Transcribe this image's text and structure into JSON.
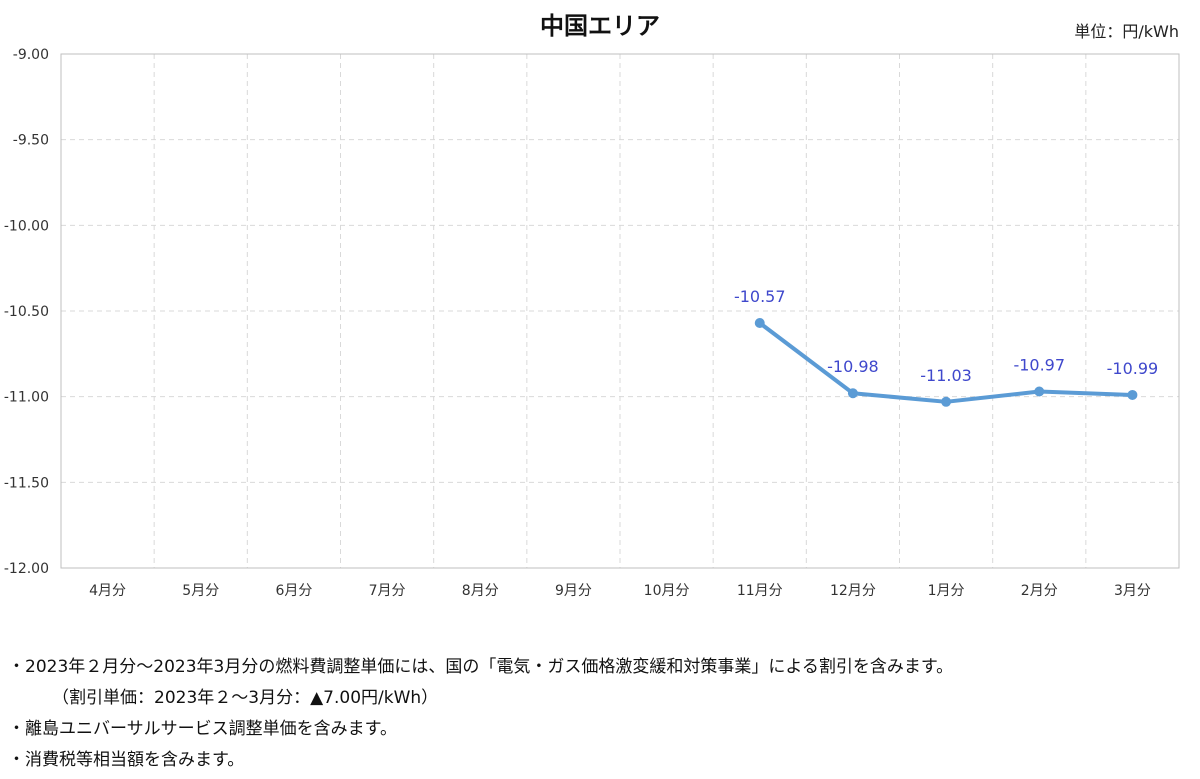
{
  "chart_data": {
    "type": "line",
    "title": "中国エリア",
    "unit": "単位：円/kWh",
    "categories": [
      "4月分",
      "5月分",
      "6月分",
      "7月分",
      "8月分",
      "9月分",
      "10月分",
      "11月分",
      "12月分",
      "1月分",
      "2月分",
      "3月分"
    ],
    "series": [
      {
        "values": [
          null,
          null,
          null,
          null,
          null,
          null,
          null,
          -10.57,
          -10.98,
          -11.03,
          -10.97,
          -10.99
        ],
        "labels": [
          "",
          "",
          "",
          "",
          "",
          "",
          "",
          "-10.57",
          "-10.98",
          "-11.03",
          "-10.97",
          "-10.99"
        ]
      }
    ],
    "ylim": [
      -12.0,
      -9.0
    ],
    "yticks": [
      "-9.00",
      "-9.50",
      "-10.00",
      "-10.50",
      "-11.00",
      "-11.50",
      "-12.00"
    ],
    "ytick_values": [
      -9.0,
      -9.5,
      -10.0,
      -10.5,
      -11.0,
      -11.5,
      -12.0
    ],
    "grid": true,
    "line_color": "#5b9bd5",
    "label_color": "#3f48cc"
  },
  "notes": [
    "・2023年２月分～2023年3月分の燃料費調整単価には、国の「電気・ガス価格激変緩和対策事業」による割引を含みます。",
    "（割引単価：2023年２～3月分：▲7.00円/kWh）",
    "・離島ユニバーサルサービス調整単価を含みます。",
    "・消費税等相当額を含みます。"
  ]
}
